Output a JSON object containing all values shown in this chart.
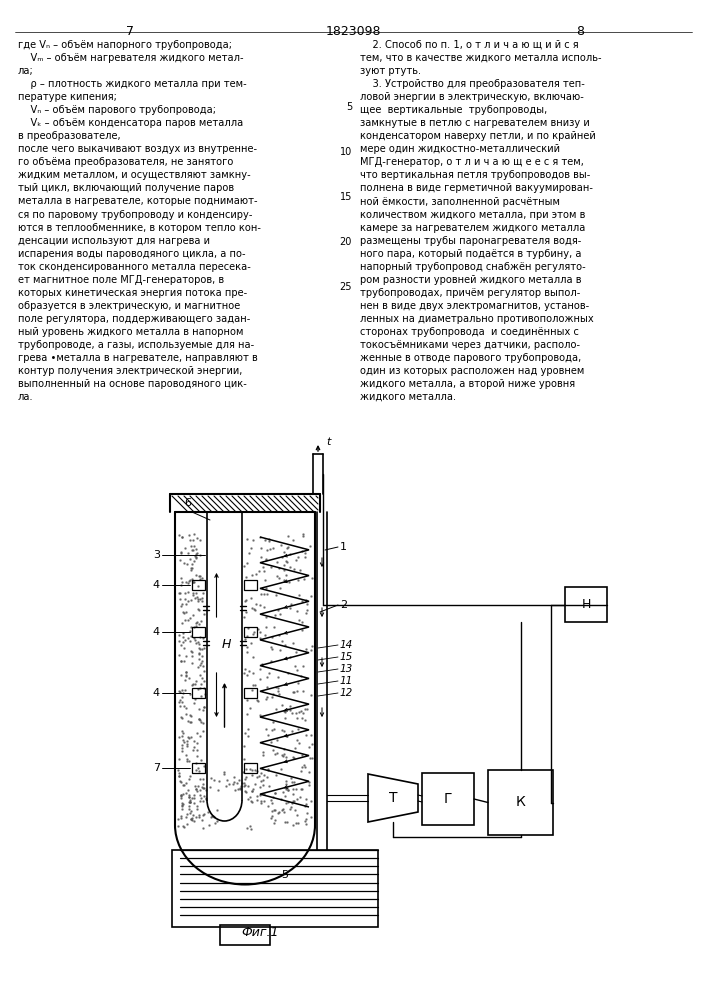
{
  "bg_color": "#ffffff",
  "page_left": "7",
  "page_center": "1823098",
  "page_right": "8",
  "left_col_lines": [
    "где Vₙ – объём напорного трубопровода;",
    "    Vₘ – объём нагревателя жидкого метал-",
    "ла;",
    "    ρ – плотность жидкого металла при тем-",
    "пературе кипения;",
    "    Vₙ – объём парового трубопровода;",
    "    Vₖ – объём конденсатора паров металла",
    "в преобразователе,",
    "после чего выкачивают воздух из внутренне-",
    "го объёма преобразователя, не занятого",
    "жидким металлом, и осуществляют замкну-",
    "тый цикл, включающий получение паров",
    "металла в нагревателе, которые поднимают-",
    "ся по паровому трубопроводу и конденсиру-",
    "ются в теплообменнике, в котором тепло кон-",
    "денсации используют для нагрева и",
    "испарения воды пароводяного цикла, а по-",
    "ток сконденсированного металла пересека-",
    "ет магнитное поле МГД-генераторов, в",
    "которых кинетическая энергия потока пре-",
    "образуется в электрическую, и магнитное",
    "поле регулятора, поддерживающего задан-",
    "ный уровень жидкого металла в напорном",
    "трубопроводе, а газы, используемые для на-",
    "грева •металла в нагревателе, направляют в",
    "контур получения электрической энергии,",
    "выполненный на основе пароводяного цик-",
    "ла."
  ],
  "right_col_lines": [
    "    2. Способ по п. 1, о т л и ч а ю щ и й с я",
    "тем, что в качестве жидкого металла исполь-",
    "зуют ртуть.",
    "    3. Устройство для преобразователя теп-",
    "ловой энергии в электрическую, включаю-",
    "щее  вертикальные  трубопроводы,",
    "замкнутые в петлю с нагревателем внизу и",
    "конденсатором наверху петли, и по крайней",
    "мере один жидкостно-металлический",
    "МГД-генератор, о т л и ч а ю щ е е с я тем,",
    "что вертикальная петля трубопроводов вы-",
    "полнена в виде герметичной вакуумирован-",
    "ной ёмкости, заполненной расчётным",
    "количеством жидкого металла, при этом в",
    "камере за нагревателем жидкого металла",
    "размещены трубы паронагревателя водя-",
    "ного пара, который подаётся в турбину, а",
    "напорный трубопровод снабжён регулято-",
    "ром разности уровней жидкого металла в",
    "трубопроводах, причём регулятор выпол-",
    "нен в виде двух электромагнитов, установ-",
    "ленных на диаметрально противоположных",
    "сторонах трубопровода  и соединённых с",
    "токосъёмниками через датчики, располо-",
    "женные в отводе парового трубопровода,",
    "один из которых расположен над уровнем",
    "жидкого металла, а второй ниже уровня",
    "жидкого металла."
  ],
  "fig_caption": "Фиг.1"
}
